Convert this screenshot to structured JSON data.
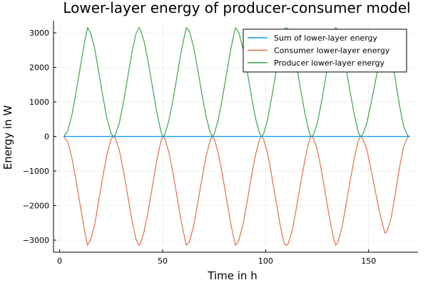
{
  "chart_data": {
    "type": "line",
    "title": "Lower-layer energy of producer-consumer model",
    "xlabel": "Time in h",
    "ylabel": "Energy in W",
    "xlim": [
      -3,
      174
    ],
    "ylim": [
      -3350,
      3350
    ],
    "xticks": [
      0,
      50,
      100,
      150
    ],
    "xtick_labels": [
      "0",
      "50",
      "100",
      "150"
    ],
    "yticks": [
      -3000,
      -2000,
      -1000,
      0,
      1000,
      2000,
      3000
    ],
    "ytick_labels": [
      "−3000",
      "−2000",
      "−1000",
      "0",
      "1000",
      "2000",
      "3000"
    ],
    "grid": true,
    "legend_position": "top-right",
    "series": [
      {
        "name": "Sum of lower-layer energy",
        "color": "#009AFA",
        "x": [
          2,
          170
        ],
        "y": [
          0,
          0
        ]
      },
      {
        "name": "Consumer lower-layer energy",
        "color": "#E26F46",
        "x": [
          2,
          4,
          6,
          8,
          10,
          12,
          13.5,
          15,
          17,
          19,
          21,
          23,
          25,
          26,
          27,
          29,
          31,
          33,
          35,
          37,
          38.5,
          39,
          41,
          43,
          45,
          47,
          49,
          50,
          51,
          53,
          55,
          57,
          59,
          61,
          61.5,
          63,
          65,
          67,
          69,
          71,
          73,
          74,
          75,
          77,
          79,
          81,
          83,
          85,
          85.5,
          87,
          89,
          91,
          93,
          95,
          97,
          98,
          99,
          101,
          103,
          105,
          107,
          109,
          110,
          111,
          113,
          115,
          117,
          119,
          121,
          122,
          123,
          125,
          127,
          129,
          131,
          133,
          134,
          135,
          137,
          139,
          141,
          143,
          145,
          146,
          147,
          149,
          151,
          153,
          155,
          157,
          158,
          159,
          161,
          163,
          165,
          167,
          169,
          170
        ],
        "y": [
          0,
          -170,
          -640,
          -1290,
          -2000,
          -2700,
          -3150,
          -3000,
          -2550,
          -1850,
          -1150,
          -500,
          -80,
          0,
          -40,
          -400,
          -1000,
          -1700,
          -2400,
          -2960,
          -3150,
          -3130,
          -2750,
          -2150,
          -1450,
          -750,
          -180,
          0,
          -50,
          -450,
          -1050,
          -1750,
          -2450,
          -3020,
          -3150,
          -3050,
          -2600,
          -1950,
          -1250,
          -600,
          -130,
          0,
          -60,
          -480,
          -1100,
          -1800,
          -2500,
          -3070,
          -3150,
          -3000,
          -2550,
          -1900,
          -1200,
          -550,
          -100,
          0,
          -70,
          -500,
          -1150,
          -1850,
          -2550,
          -3100,
          -3150,
          -3100,
          -2700,
          -2050,
          -1350,
          -700,
          -150,
          0,
          -30,
          -350,
          -950,
          -1650,
          -2350,
          -2950,
          -3150,
          -3080,
          -2650,
          -2000,
          -1300,
          -650,
          -120,
          0,
          -40,
          -350,
          -900,
          -1500,
          -2100,
          -2600,
          -2800,
          -2750,
          -2350,
          -1650,
          -900,
          -300,
          -20,
          0
        ]
      },
      {
        "name": "Producer lower-layer energy",
        "color": "#3DA44E",
        "x": [
          2,
          4,
          6,
          8,
          10,
          12,
          13.5,
          15,
          17,
          19,
          21,
          23,
          25,
          26,
          27,
          29,
          31,
          33,
          35,
          37,
          38.5,
          39,
          41,
          43,
          45,
          47,
          49,
          50,
          51,
          53,
          55,
          57,
          59,
          61,
          61.5,
          63,
          65,
          67,
          69,
          71,
          73,
          74,
          75,
          77,
          79,
          81,
          83,
          85,
          85.5,
          87,
          89,
          91,
          93,
          95,
          97,
          98,
          99,
          101,
          103,
          105,
          107,
          109,
          110,
          111,
          113,
          115,
          117,
          119,
          121,
          122,
          123,
          125,
          127,
          129,
          131,
          133,
          134,
          135,
          137,
          139,
          141,
          143,
          145,
          146,
          147,
          149,
          151,
          153,
          155,
          157,
          158,
          159,
          161,
          163,
          165,
          167,
          169,
          170
        ],
        "y": [
          0,
          170,
          640,
          1290,
          2000,
          2700,
          3150,
          3000,
          2550,
          1850,
          1150,
          500,
          80,
          0,
          40,
          400,
          1000,
          1700,
          2400,
          2960,
          3150,
          3130,
          2750,
          2150,
          1450,
          750,
          180,
          0,
          50,
          450,
          1050,
          1750,
          2450,
          3020,
          3150,
          3050,
          2600,
          1950,
          1250,
          600,
          130,
          0,
          60,
          480,
          1100,
          1800,
          2500,
          3070,
          3150,
          3000,
          2550,
          1900,
          1200,
          550,
          100,
          0,
          70,
          500,
          1150,
          1850,
          2550,
          3100,
          3150,
          3100,
          2700,
          2050,
          1350,
          700,
          150,
          0,
          30,
          350,
          950,
          1650,
          2350,
          2950,
          3150,
          3080,
          2650,
          2000,
          1300,
          650,
          120,
          0,
          40,
          350,
          900,
          1500,
          2100,
          2600,
          2800,
          2750,
          2350,
          1650,
          900,
          300,
          20,
          0
        ]
      }
    ]
  }
}
